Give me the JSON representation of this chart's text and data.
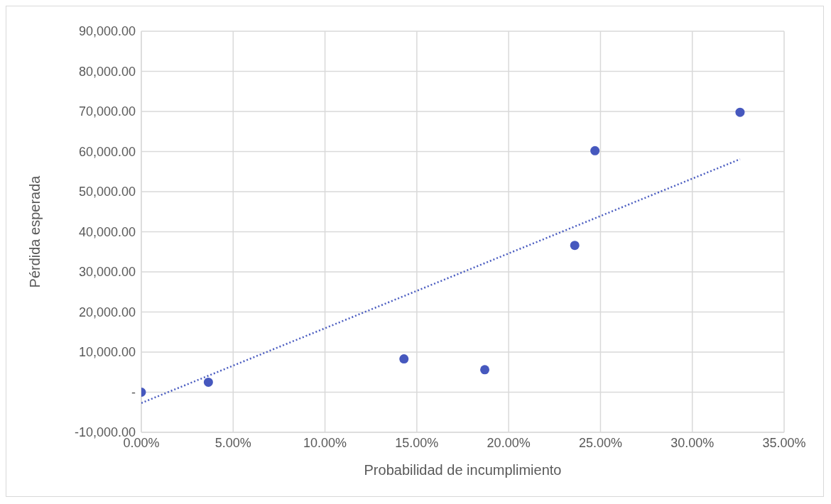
{
  "chart_data": {
    "type": "scatter",
    "xlabel": "Probabilidad de incumplimiento",
    "ylabel": "Pérdida esperada",
    "xlim": [
      0,
      35
    ],
    "xticks": [
      {
        "value": 0,
        "label": "0.00%"
      },
      {
        "value": 5,
        "label": "5.00%"
      },
      {
        "value": 10,
        "label": "10.00%"
      },
      {
        "value": 15,
        "label": "15.00%"
      },
      {
        "value": 20,
        "label": "20.00%"
      },
      {
        "value": 25,
        "label": "25.00%"
      },
      {
        "value": 30,
        "label": "30.00%"
      },
      {
        "value": 35,
        "label": "35.00%"
      }
    ],
    "ylim": [
      -10000,
      90000
    ],
    "yticks": [
      {
        "value": -10000,
        "label": "-10,000.00"
      },
      {
        "value": 0,
        "label": "-"
      },
      {
        "value": 10000,
        "label": "10,000.00"
      },
      {
        "value": 20000,
        "label": "20,000.00"
      },
      {
        "value": 30000,
        "label": "30,000.00"
      },
      {
        "value": 40000,
        "label": "40,000.00"
      },
      {
        "value": 50000,
        "label": "50,000.00"
      },
      {
        "value": 60000,
        "label": "60,000.00"
      },
      {
        "value": 70000,
        "label": "70,000.00"
      },
      {
        "value": 80000,
        "label": "80,000.00"
      },
      {
        "value": 90000,
        "label": "90,000.00"
      }
    ],
    "grid": true,
    "marker": "circle",
    "series": [
      {
        "color": "#4658be",
        "x": [
          0,
          3.65,
          14.3,
          18.7,
          23.6,
          24.7,
          32.6
        ],
        "values": [
          0,
          2500,
          8300,
          5600,
          36600,
          60200,
          69800
        ]
      },
      {
        "type": "line",
        "color": "#4a5cc0",
        "line_style": "dotted",
        "marker": "none",
        "x": [
          0,
          32.6
        ],
        "values": [
          -2700,
          58100
        ]
      }
    ]
  }
}
